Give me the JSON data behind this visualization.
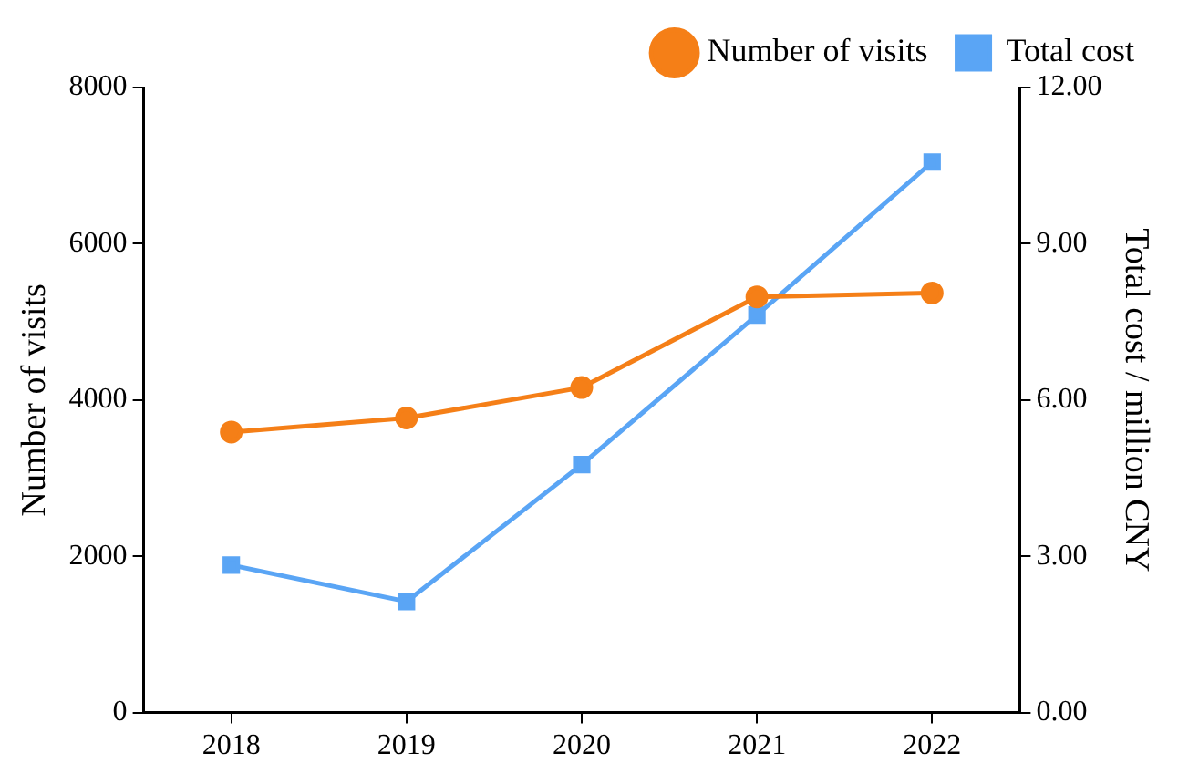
{
  "chart_data": {
    "type": "line",
    "categories": [
      "2018",
      "2019",
      "2020",
      "2021",
      "2022"
    ],
    "ylabel": "Number of visits",
    "y2label": "Total cost / million CNY",
    "ylim": [
      0,
      8000
    ],
    "yticks": [
      0,
      2000,
      4000,
      6000,
      8000
    ],
    "y2lim": [
      0,
      12
    ],
    "y2ticks": [
      {
        "value": 0,
        "label": "0.00"
      },
      {
        "value": 3,
        "label": "3.00"
      },
      {
        "value": 6,
        "label": "6.00"
      },
      {
        "value": 9,
        "label": "9.00"
      },
      {
        "value": 12,
        "label": "12.00"
      }
    ],
    "grid": false,
    "legend": "top right",
    "line_style": "solid",
    "series": [
      {
        "name": "Number of visits",
        "color": "#f57f17",
        "marker": "circle",
        "values": [
          3590,
          3770,
          4160,
          5320,
          5370
        ]
      },
      {
        "name": "Total cost",
        "color": "#5aa5f5",
        "marker": "square",
        "axis": "y2",
        "values": [
          2.83,
          2.13,
          4.76,
          7.63,
          10.57
        ]
      }
    ]
  }
}
